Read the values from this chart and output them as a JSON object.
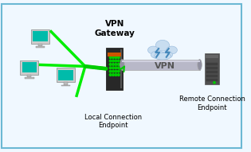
{
  "bg_color": "#f0f8ff",
  "border_color": "#6bb8d4",
  "title_vpn_gateway": "VPN\nGateway",
  "label_local": "Local Connection\nEndpoint",
  "label_remote": "Remote Connection\nEndpoint",
  "label_vpn_tunnel": "VPN",
  "green_dot_color": "#00cc00",
  "green_line_color": "#00ee00",
  "arrow_green": "#00cc00",
  "cloud_color": "#c8ddf0",
  "cloud_edge": "#a0c0e0",
  "tunnel_color": "#c0c0c8",
  "server_dark": "#404040",
  "server_light": "#707078",
  "monitor_body": "#d0d0d0",
  "monitor_screen": "#00bbbb",
  "figsize": [
    3.15,
    1.91
  ],
  "dpi": 100
}
